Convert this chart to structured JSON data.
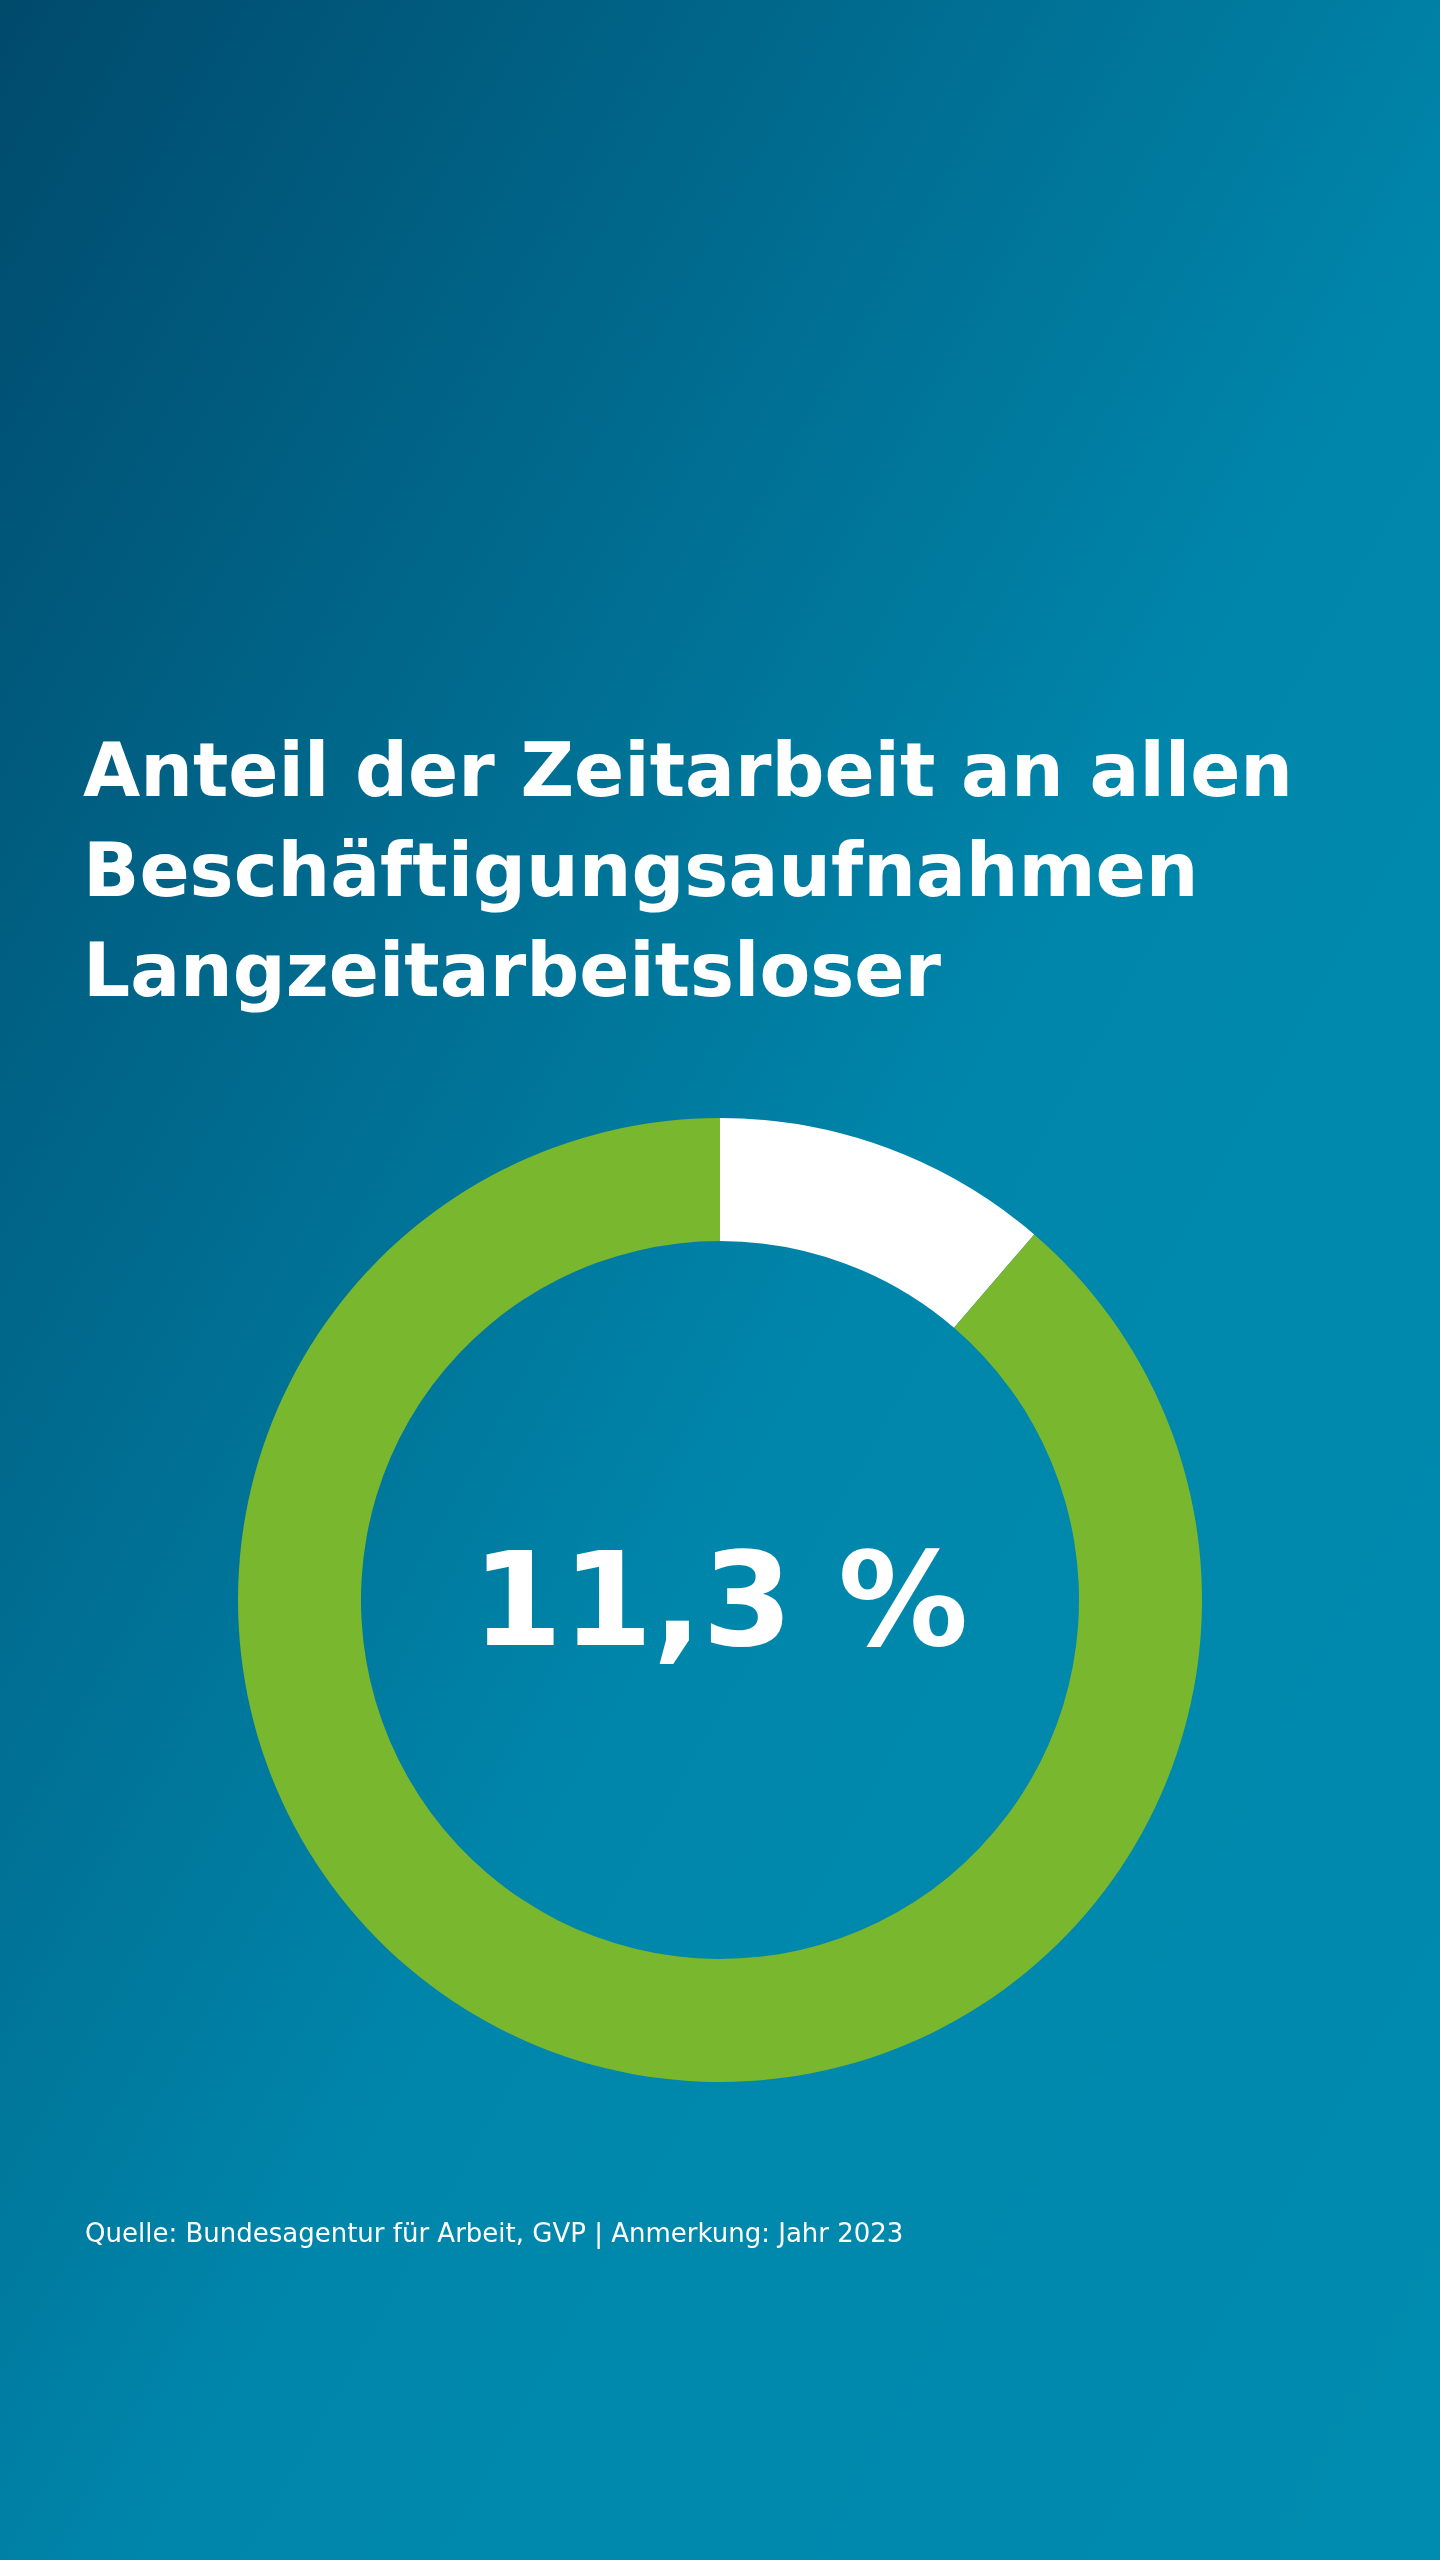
{
  "chart_data": {
    "type": "donut",
    "title": "Anteil der Zeitarbeit an allen Beschäftigungsaufnahmen Langzeitarbeitsloser",
    "categories": [
      null,
      null
    ],
    "values": [
      11.3,
      88.7
    ],
    "colors": [
      "#ffffff",
      "#78b72e"
    ],
    "annotations": [
      "11,3 %",
      "Quelle: Bundesagentur für Arbeit, GVP | Anmerkung: Jahr 2023"
    ]
  }
}
